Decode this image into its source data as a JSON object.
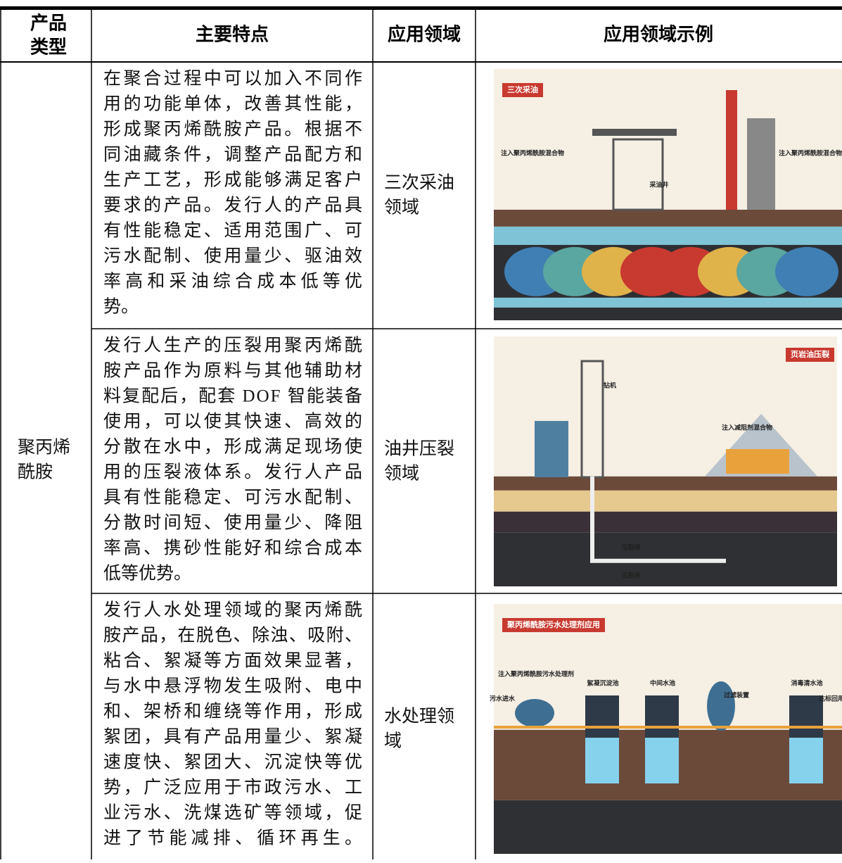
{
  "header": {
    "columns": [
      [
        "产品",
        "类型"
      ],
      [
        "主要特点"
      ],
      [
        "应用领域"
      ],
      [
        "应用领域示例"
      ]
    ]
  },
  "product_type": [
    "聚丙烯",
    "酰胺"
  ],
  "rows": [
    {
      "features": [
        "在聚合过程中可以加入不同作",
        "用的功能单体，改善其性能，",
        "形成聚丙烯酰胺产品。根据不",
        "同油藏条件，调整产品配方和",
        "生产工艺，形成能够满足客户",
        "要求的产品。发行人的产品具",
        "有性能稳定、适用范围广、可",
        "污水配制、使用量少、驱油效",
        "率高和采油综合成本低等优",
        "势。"
      ],
      "field": [
        "三次采油",
        "领域"
      ],
      "illustration": {
        "title": "三次采油",
        "labels": [
          "注入聚丙烯酰胺混合物",
          "注入聚丙烯酰胺混合物",
          "采油井"
        ]
      }
    },
    {
      "features": [
        "发行人生产的压裂用聚丙烯酰",
        "胺产品作为原料与其他辅助材",
        "料复配后，配套 DOF 智能装备",
        "使用，可以使其快速、高效的",
        "分散在水中，形成满足现场使",
        "用的压裂液体系。发行人产品",
        "具有性能稳定、可污水配制、",
        "分散时间短、使用量少、降阻",
        "率高、携砂性能好和综合成本",
        "低等优势。"
      ],
      "field": [
        "油井压裂",
        "领域"
      ],
      "illustration": {
        "title": "页岩油压裂",
        "labels": [
          "钻机",
          "注入减阻剂混合物",
          "压裂液",
          "压裂液"
        ]
      }
    },
    {
      "features": [
        "发行人水处理领域的聚丙烯酰",
        "胺产品，在脱色、除浊、吸附、",
        "粘合、絮凝等方面效果显著，",
        "与水中悬浮物发生吸附、电中",
        "和、架桥和缠绕等作用，形成",
        "絮团，具有产品用量少、絮凝",
        "速度快、絮团大、沉淀快等优",
        "势，广泛应用于市政污水、工",
        "业污水、洗煤选矿等领域，促",
        "进了节能减排、循环再生。"
      ],
      "field": [
        "水处理领",
        "域"
      ],
      "illustration": {
        "title": "聚丙烯酰胺污水处理剂应用",
        "labels": [
          "注入聚丙烯酰胺污水处理剂",
          "污水进水",
          "絮凝沉淀池",
          "中间水池",
          "过滤装置",
          "消毒清水池",
          "达标回用"
        ]
      }
    }
  ]
}
